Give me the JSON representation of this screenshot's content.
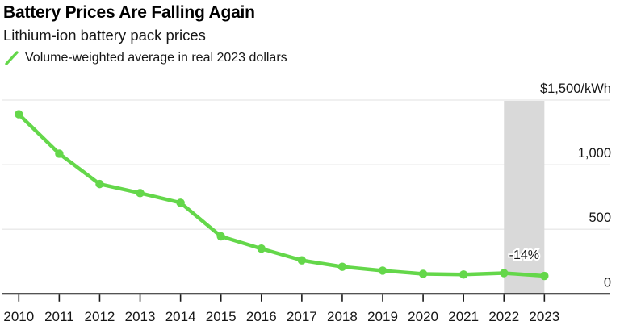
{
  "header": {
    "title": "Battery Prices Are Falling Again",
    "subtitle": "Lithium-ion battery pack prices",
    "legend_label": "Volume-weighted average in real 2023 dollars"
  },
  "colors": {
    "series_green": "#64d74a",
    "gridline": "#e8e8e8",
    "axis": "#1a1a1a",
    "highlight_band": "#d9d9d9",
    "text": "#161616"
  },
  "chart_data": {
    "type": "line",
    "title": "Battery Prices Are Falling Again",
    "subtitle": "Lithium-ion battery pack prices",
    "unit": "$/kWh",
    "categories": [
      "2010",
      "2011",
      "2012",
      "2013",
      "2014",
      "2015",
      "2016",
      "2017",
      "2018",
      "2019",
      "2020",
      "2021",
      "2022",
      "2023"
    ],
    "series": [
      {
        "name": "Volume-weighted average in real 2023 dollars",
        "color": "#64d74a",
        "values": [
          1390,
          1085,
          850,
          780,
          705,
          445,
          350,
          260,
          210,
          180,
          155,
          150,
          161,
          139
        ]
      }
    ],
    "ylim": [
      0,
      1500
    ],
    "yticks": [
      0,
      500,
      1000,
      1500
    ],
    "ytick_labels": [
      "0",
      "500",
      "1,000",
      "$1,500/kWh"
    ],
    "grid": "horizontal",
    "legend_position": "top-left",
    "annotation": {
      "text": "-14%",
      "between": [
        "2022",
        "2023"
      ]
    },
    "highlight_band": {
      "from": "2022",
      "to": "2023",
      "color": "#d9d9d9"
    }
  }
}
